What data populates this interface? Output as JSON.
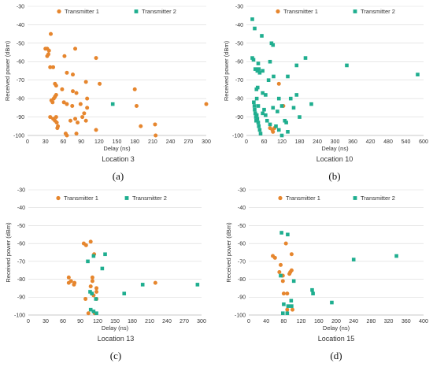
{
  "colors": {
    "transmitter1": "#e6862e",
    "transmitter2": "#1fae8f"
  },
  "chart_data": [
    {
      "type": "scatter",
      "panel_label": "(a)",
      "caption": "Location 3",
      "xlabel": "Delay (ns)",
      "ylabel": "Received power (dBm)",
      "xlim": [
        0,
        300
      ],
      "ylim": [
        -100,
        -30
      ],
      "xticks": [
        0,
        30,
        60,
        90,
        120,
        150,
        180,
        210,
        240,
        270,
        300
      ],
      "yticks": [
        -100,
        -90,
        -80,
        -70,
        -60,
        -50,
        -40,
        -30
      ],
      "legend_position": "top-center",
      "series": [
        {
          "name": "Transmitter 1",
          "points": [
            [
              39,
              -45
            ],
            [
              30,
              -53
            ],
            [
              33,
              -53
            ],
            [
              36,
              -54
            ],
            [
              35,
              -56
            ],
            [
              33,
              -57
            ],
            [
              80,
              -53
            ],
            [
              115,
              -58
            ],
            [
              62,
              -57
            ],
            [
              38,
              -63
            ],
            [
              43,
              -63
            ],
            [
              66,
              -66
            ],
            [
              76,
              -67
            ],
            [
              46,
              -72
            ],
            [
              48,
              -73
            ],
            [
              121,
              -72
            ],
            [
              58,
              -75
            ],
            [
              76,
              -76
            ],
            [
              82,
              -77
            ],
            [
              98,
              -71
            ],
            [
              48,
              -78
            ],
            [
              46,
              -79
            ],
            [
              44,
              -80
            ],
            [
              42,
              -82
            ],
            [
              40,
              -81
            ],
            [
              61,
              -82
            ],
            [
              66,
              -83
            ],
            [
              75,
              -84
            ],
            [
              89,
              -83
            ],
            [
              100,
              -80
            ],
            [
              180,
              -75
            ],
            [
              183,
              -84
            ],
            [
              38,
              -90
            ],
            [
              43,
              -91
            ],
            [
              46,
              -92
            ],
            [
              48,
              -90
            ],
            [
              49,
              -93
            ],
            [
              51,
              -95
            ],
            [
              50,
              -96
            ],
            [
              72,
              -92
            ],
            [
              80,
              -91
            ],
            [
              84,
              -93
            ],
            [
              92,
              -90
            ],
            [
              98,
              -92
            ],
            [
              100,
              -85
            ],
            [
              95,
              -88
            ],
            [
              115,
              -97
            ],
            [
              190,
              -95
            ],
            [
              214,
              -94
            ],
            [
              215,
              -100
            ],
            [
              300,
              -83
            ],
            [
              64,
              -99
            ],
            [
              66,
              -100
            ],
            [
              82,
              -99
            ]
          ]
        },
        {
          "name": "Transmitter 2",
          "points": [
            [
              143,
              -83
            ]
          ]
        }
      ]
    },
    {
      "type": "scatter",
      "panel_label": "(b)",
      "caption": "Location 10",
      "xlabel": "Delay (ns)",
      "ylabel": "Received power (dBm)",
      "xlim": [
        0,
        600
      ],
      "ylim": [
        -100,
        -30
      ],
      "xticks": [
        0,
        60,
        120,
        180,
        240,
        300,
        360,
        420,
        480,
        540,
        600
      ],
      "yticks": [
        -100,
        -90,
        -80,
        -70,
        -60,
        -50,
        -40,
        -30
      ],
      "legend_position": "top-center",
      "series": [
        {
          "name": "Transmitter 1",
          "points": [
            [
              110,
              -72
            ],
            [
              125,
              -84
            ],
            [
              80,
              -96
            ],
            [
              88,
              -97
            ],
            [
              90,
              -98
            ],
            [
              95,
              -96
            ]
          ]
        },
        {
          "name": "Transmitter 2",
          "points": [
            [
              20,
              -37
            ],
            [
              28,
              -42
            ],
            [
              52,
              -46
            ],
            [
              85,
              -50
            ],
            [
              90,
              -51
            ],
            [
              20,
              -58
            ],
            [
              24,
              -59
            ],
            [
              40,
              -61
            ],
            [
              80,
              -60
            ],
            [
              170,
              -62
            ],
            [
              200,
              -58
            ],
            [
              340,
              -62
            ],
            [
              580,
              -67
            ],
            [
              30,
              -64
            ],
            [
              37,
              -65
            ],
            [
              42,
              -64
            ],
            [
              45,
              -66
            ],
            [
              55,
              -65
            ],
            [
              75,
              -70
            ],
            [
              92,
              -68
            ],
            [
              140,
              -68
            ],
            [
              34,
              -75
            ],
            [
              38,
              -74
            ],
            [
              55,
              -77
            ],
            [
              65,
              -78
            ],
            [
              110,
              -80
            ],
            [
              150,
              -80
            ],
            [
              170,
              -78
            ],
            [
              220,
              -83
            ],
            [
              25,
              -82
            ],
            [
              27,
              -84
            ],
            [
              28,
              -86
            ],
            [
              30,
              -88
            ],
            [
              32,
              -90
            ],
            [
              33,
              -92
            ],
            [
              35,
              -89
            ],
            [
              37,
              -91
            ],
            [
              40,
              -93
            ],
            [
              42,
              -95
            ],
            [
              45,
              -97
            ],
            [
              48,
              -99
            ],
            [
              55,
              -88
            ],
            [
              60,
              -86
            ],
            [
              65,
              -89
            ],
            [
              70,
              -92
            ],
            [
              80,
              -94
            ],
            [
              90,
              -85
            ],
            [
              105,
              -87
            ],
            [
              120,
              -84
            ],
            [
              130,
              -92
            ],
            [
              135,
              -93
            ],
            [
              160,
              -85
            ],
            [
              180,
              -90
            ],
            [
              110,
              -97
            ],
            [
              120,
              -100
            ],
            [
              140,
              -98
            ],
            [
              100,
              -95
            ],
            [
              35,
              -80
            ],
            [
              40,
              -84
            ]
          ]
        }
      ]
    },
    {
      "type": "scatter",
      "panel_label": "(c)",
      "caption": "Location 13",
      "xlabel": "Delay (ns)",
      "ylabel": "Received power (dBm)",
      "xlim": [
        0,
        300
      ],
      "ylim": [
        -100,
        -30
      ],
      "xticks": [
        0,
        30,
        60,
        90,
        120,
        150,
        180,
        210,
        240,
        270,
        300
      ],
      "yticks": [
        -100,
        -90,
        -80,
        -70,
        -60,
        -50,
        -40,
        -30
      ],
      "legend_position": "top-center",
      "series": [
        {
          "name": "Transmitter 1",
          "points": [
            [
              96,
              -60
            ],
            [
              100,
              -61
            ],
            [
              108,
              -59
            ],
            [
              114,
              -66
            ],
            [
              70,
              -79
            ],
            [
              70,
              -82
            ],
            [
              74,
              -81
            ],
            [
              79,
              -83
            ],
            [
              80,
              -82
            ],
            [
              111,
              -79
            ],
            [
              111,
              -81
            ],
            [
              108,
              -84
            ],
            [
              118,
              -85
            ],
            [
              118,
              -87
            ],
            [
              99,
              -91
            ],
            [
              113,
              -89
            ],
            [
              118,
              -91
            ],
            [
              220,
              -82
            ],
            [
              104,
              -99
            ],
            [
              115,
              -99
            ]
          ]
        },
        {
          "name": "Transmitter 2",
          "points": [
            [
              103,
              -70
            ],
            [
              113,
              -67
            ],
            [
              133,
              -66
            ],
            [
              128,
              -74
            ],
            [
              107,
              -87
            ],
            [
              110,
              -88
            ],
            [
              117,
              -91
            ],
            [
              108,
              -97
            ],
            [
              113,
              -98
            ],
            [
              118,
              -99
            ],
            [
              166,
              -88
            ],
            [
              198,
              -83
            ],
            [
              293,
              -83
            ]
          ]
        }
      ]
    },
    {
      "type": "scatter",
      "panel_label": "(d)",
      "caption": "Location 15",
      "xlabel": "Delay (ns)",
      "ylabel": "Received power (dBm)",
      "xlim": [
        0,
        400
      ],
      "ylim": [
        -100,
        -30
      ],
      "xticks": [
        0,
        40,
        80,
        120,
        160,
        200,
        240,
        280,
        320,
        360,
        400
      ],
      "yticks": [
        -100,
        -90,
        -80,
        -70,
        -60,
        -50,
        -40,
        -30
      ],
      "legend_position": "top-center",
      "series": [
        {
          "name": "Transmitter 1",
          "points": [
            [
              55,
              -67
            ],
            [
              60,
              -68
            ],
            [
              85,
              -60
            ],
            [
              98,
              -66
            ],
            [
              73,
              -72
            ],
            [
              70,
              -76
            ],
            [
              95,
              -76
            ],
            [
              98,
              -75
            ],
            [
              93,
              -77
            ],
            [
              76,
              -78
            ],
            [
              78,
              -78
            ],
            [
              78,
              -81
            ],
            [
              80,
              -88
            ],
            [
              88,
              -88
            ],
            [
              88,
              -97
            ],
            [
              100,
              -97
            ]
          ]
        },
        {
          "name": "Transmitter 2",
          "points": [
            [
              75,
              -54
            ],
            [
              89,
              -55
            ],
            [
              73,
              -78
            ],
            [
              103,
              -81
            ],
            [
              80,
              -94
            ],
            [
              90,
              -95
            ],
            [
              97,
              -92
            ],
            [
              98,
              -95
            ],
            [
              78,
              -99
            ],
            [
              88,
              -99
            ],
            [
              145,
              -86
            ],
            [
              147,
              -88
            ],
            [
              190,
              -93
            ],
            [
              240,
              -69
            ],
            [
              338,
              -67
            ]
          ]
        }
      ]
    }
  ]
}
